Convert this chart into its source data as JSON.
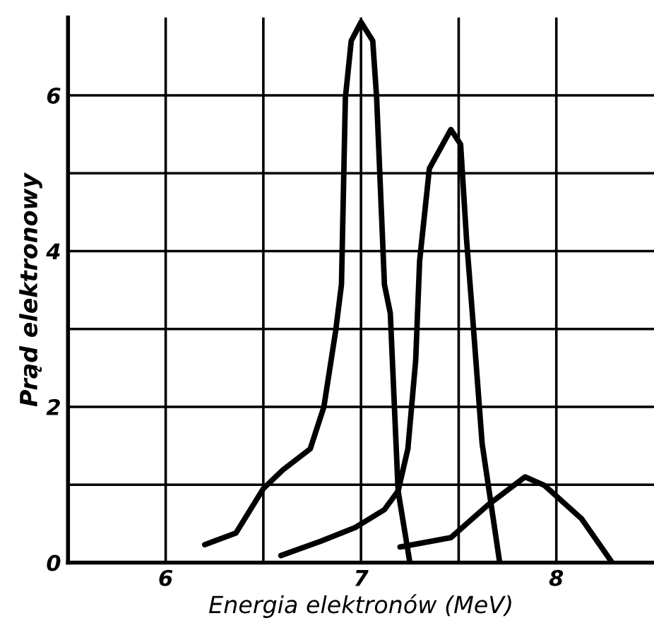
{
  "chart_data": {
    "type": "line",
    "xlabel": "Energia elektronów (MeV)",
    "ylabel": "Prąd elektronowy",
    "xlim": [
      5.5,
      8.5
    ],
    "ylim": [
      0,
      7
    ],
    "xticks": [
      {
        "value": 5.5,
        "label": null
      },
      6,
      {
        "value": 6.5,
        "label": null
      },
      7,
      {
        "value": 7.5,
        "label": null
      },
      8
    ],
    "yticks": [
      0,
      {
        "value": 1,
        "label": null
      },
      2,
      {
        "value": 3,
        "label": null
      },
      4,
      {
        "value": 5,
        "label": null
      },
      6
    ],
    "grid": true,
    "legend": false,
    "marker": "none",
    "line_style": "solid",
    "series": [
      {
        "color": "#000000",
        "x": [
          6.2,
          6.36,
          6.5,
          6.6,
          6.74,
          6.81,
          6.87,
          6.9,
          6.92,
          6.95,
          7.0,
          7.06,
          7.08,
          7.12,
          7.15,
          7.19,
          7.25
        ],
        "values": [
          0.23,
          0.38,
          0.95,
          1.19,
          1.46,
          2.0,
          2.97,
          3.57,
          5.97,
          6.7,
          6.94,
          6.7,
          5.97,
          3.57,
          3.2,
          0.92,
          0
        ]
      },
      {
        "color": "#000000",
        "x": [
          6.59,
          6.79,
          6.97,
          7.12,
          7.19,
          7.24,
          7.28,
          7.3,
          7.35,
          7.46,
          7.51,
          7.54,
          7.57,
          7.62,
          7.71
        ],
        "values": [
          0.09,
          0.27,
          0.45,
          0.68,
          0.92,
          1.46,
          2.6,
          3.87,
          5.06,
          5.56,
          5.37,
          4.16,
          3.2,
          1.53,
          0
        ]
      },
      {
        "color": "#000000",
        "x": [
          7.2,
          7.46,
          7.65,
          7.84,
          7.94,
          8.13,
          8.28
        ],
        "values": [
          0.2,
          0.32,
          0.74,
          1.1,
          0.99,
          0.56,
          0.02
        ]
      }
    ]
  }
}
